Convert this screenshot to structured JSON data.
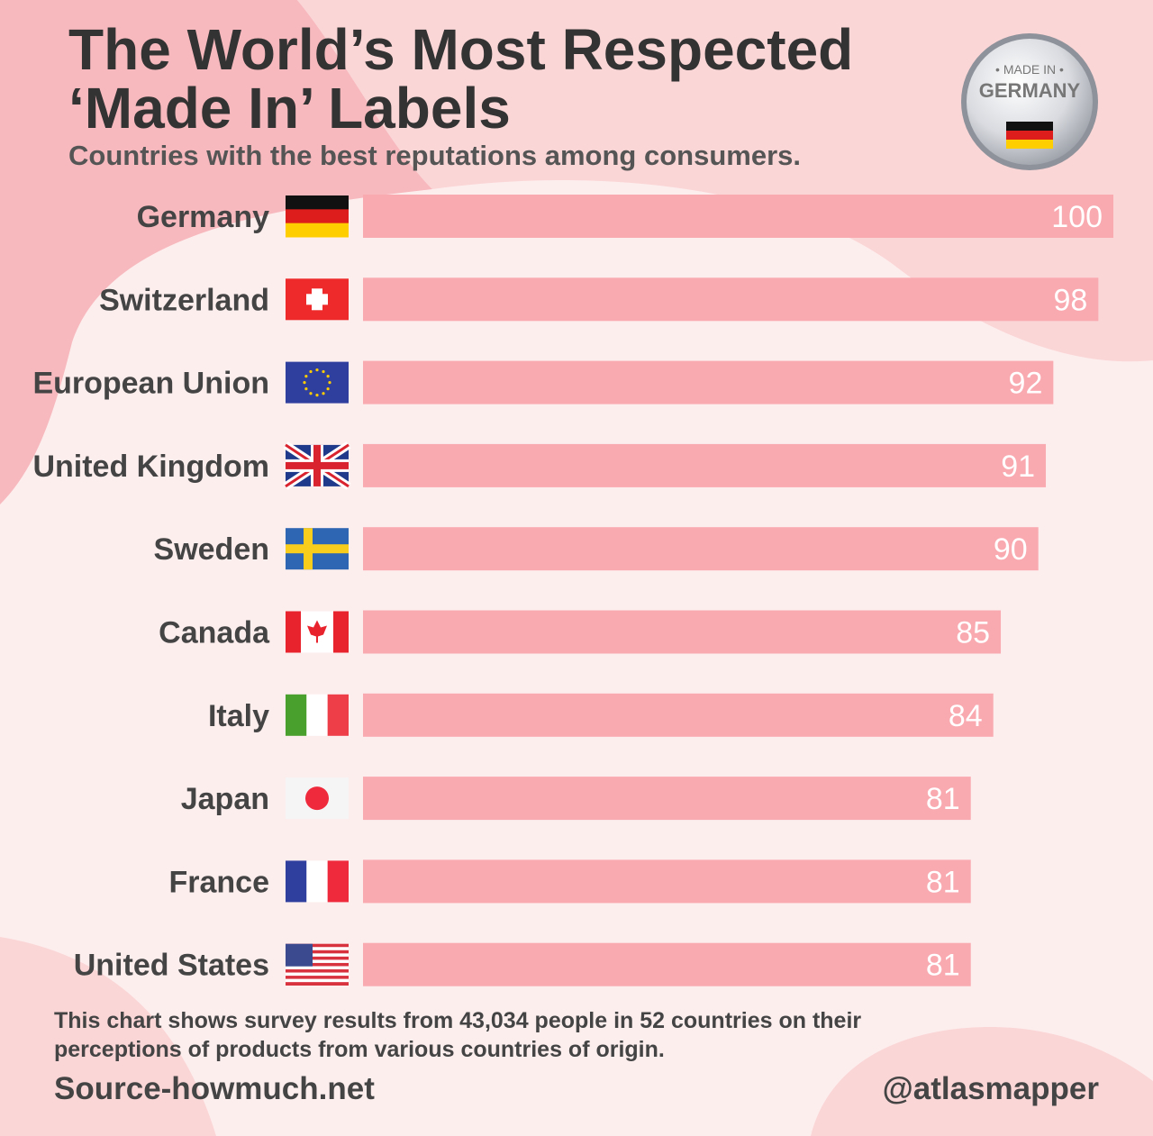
{
  "chart_data": {
    "type": "bar",
    "orientation": "horizontal",
    "title": [
      "The World’s Most Respected",
      "‘Made In’ Labels"
    ],
    "subtitle": "Countries with the best reputations among consumers.",
    "badge": {
      "top": "• MADE IN •",
      "bottom": "GERMANY"
    },
    "categories": [
      "Germany",
      "Switzerland",
      "European Union",
      "United Kingdom",
      "Sweden",
      "Canada",
      "Italy",
      "Japan",
      "France",
      "United States"
    ],
    "values": [
      100,
      98,
      92,
      91,
      90,
      85,
      84,
      81,
      81,
      81
    ],
    "color": "#f9a9b0",
    "xlim": [
      0,
      100
    ],
    "note": [
      "This chart shows survey results from 43,034 people in 52 countries on their",
      "perceptions of products from various countries of origin."
    ],
    "source": "Source-howmuch.net",
    "credit": "@atlasmapper"
  }
}
